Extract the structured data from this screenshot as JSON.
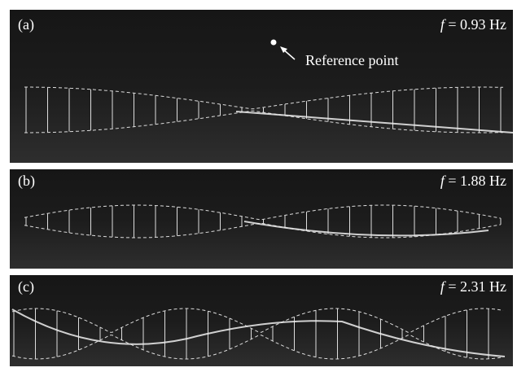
{
  "panels": [
    {
      "label": "(a)",
      "frequency": {
        "symbol": "f",
        "text": "= 0.93 Hz"
      },
      "annotation": "Reference point"
    },
    {
      "label": "(b)",
      "frequency": {
        "symbol": "f",
        "text": "= 1.88 Hz"
      }
    },
    {
      "label": "(c)",
      "frequency": {
        "symbol": "f",
        "text": "= 2.31 Hz"
      }
    }
  ]
}
